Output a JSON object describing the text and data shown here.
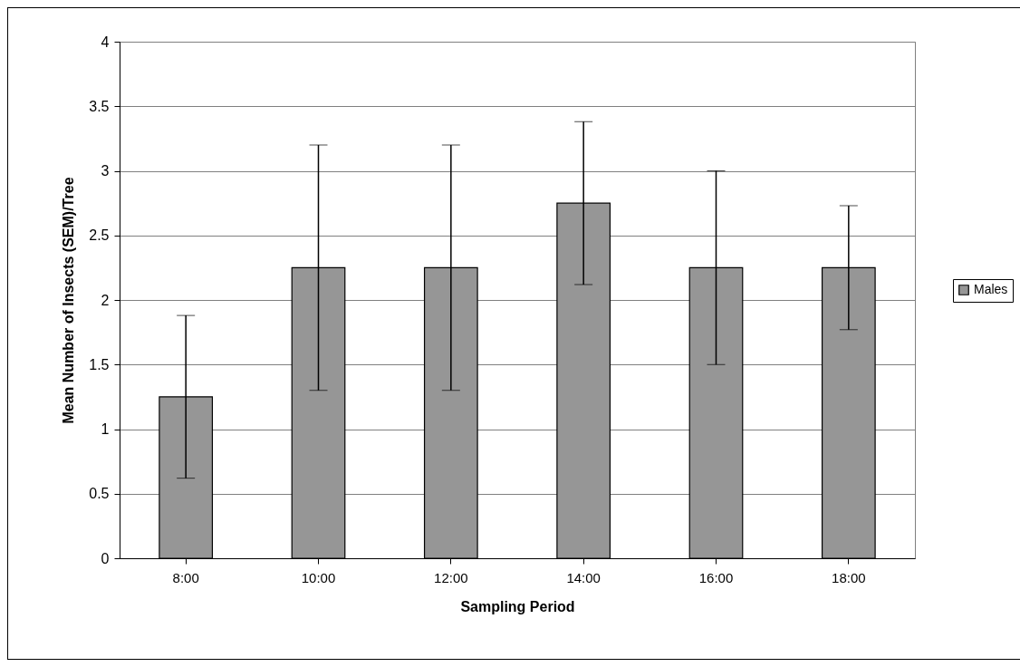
{
  "chart_data": {
    "type": "bar",
    "xlabel": "Sampling Period",
    "ylabel": "Mean Number of Insects (SEM)/Tree",
    "categories": [
      "8:00",
      "10:00",
      "12:00",
      "14:00",
      "16:00",
      "18:00"
    ],
    "series": [
      {
        "name": "Males",
        "color": "#969696",
        "values": [
          1.25,
          2.25,
          2.25,
          2.75,
          2.25,
          2.25
        ],
        "errors": [
          0.63,
          0.95,
          0.95,
          0.63,
          0.75,
          0.48
        ]
      }
    ],
    "ylim": [
      0,
      4
    ],
    "yticks": [
      {
        "value": 0,
        "label": "0"
      },
      0.5,
      {
        "value": 1,
        "label": "1"
      },
      1.5,
      {
        "value": 2,
        "label": "2"
      },
      2.5,
      {
        "value": 3,
        "label": "3"
      },
      3.5,
      {
        "value": 4,
        "label": "4"
      }
    ],
    "grid": "y",
    "legend": "right"
  }
}
